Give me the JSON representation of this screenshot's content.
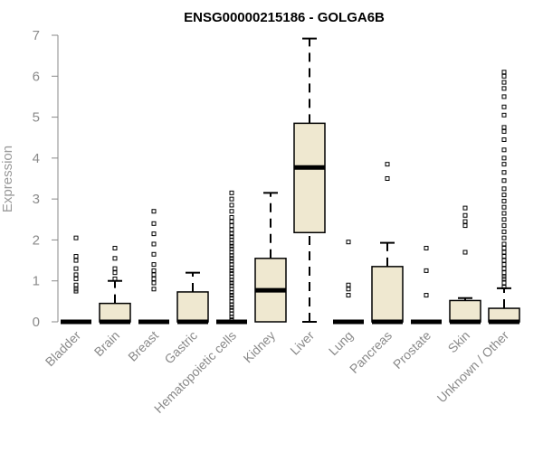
{
  "chart_data": {
    "type": "box",
    "title": "ENSG00000215186 - GOLGA6B",
    "xlabel": "",
    "ylabel": "Expression",
    "ylim": [
      0,
      7
    ],
    "yticks": [
      0,
      1,
      2,
      3,
      4,
      5,
      6,
      7
    ],
    "grid": false,
    "box_color": "#efe8d0",
    "categories": [
      "Bladder",
      "Brain",
      "Breast",
      "Gastric",
      "Hematopoietic cells",
      "Kidney",
      "Liver",
      "Lung",
      "Pancreas",
      "Prostate",
      "Skin",
      "Unknown / Other"
    ],
    "boxes": [
      {
        "label": "Bladder",
        "min": 0,
        "q1": 0,
        "median": 0,
        "q3": 0,
        "max": 0,
        "outliers": [
          0.75,
          0.8,
          0.9,
          1.05,
          1.15,
          1.3,
          1.5,
          1.6,
          2.05
        ]
      },
      {
        "label": "Brain",
        "min": 0,
        "q1": 0,
        "median": 0,
        "q3": 0.45,
        "max": 1.0,
        "outliers": [
          1.05,
          1.2,
          1.3,
          1.55,
          1.8
        ]
      },
      {
        "label": "Breast",
        "min": 0,
        "q1": 0,
        "median": 0,
        "q3": 0,
        "max": 0,
        "outliers": [
          0.8,
          0.95,
          1.05,
          1.15,
          1.25,
          1.4,
          1.65,
          1.9,
          2.15,
          2.4,
          2.7
        ]
      },
      {
        "label": "Gastric",
        "min": 0,
        "q1": 0,
        "median": 0,
        "q3": 0.73,
        "max": 1.2,
        "outliers": []
      },
      {
        "label": "Hematopoietic cells",
        "min": 0,
        "q1": 0,
        "median": 0,
        "q3": 0,
        "max": 0,
        "outliers": [
          0.05,
          0.12,
          0.2,
          0.28,
          0.35,
          0.42,
          0.5,
          0.58,
          0.65,
          0.72,
          0.8,
          0.88,
          0.95,
          1.02,
          1.1,
          1.18,
          1.25,
          1.32,
          1.4,
          1.48,
          1.55,
          1.62,
          1.7,
          1.78,
          1.85,
          1.92,
          2.0,
          2.08,
          2.15,
          2.25,
          2.35,
          2.45,
          2.55,
          2.7,
          2.85,
          3.0,
          3.15
        ]
      },
      {
        "label": "Kidney",
        "min": 0,
        "q1": 0,
        "median": 0.77,
        "q3": 1.55,
        "max": 3.15,
        "outliers": []
      },
      {
        "label": "Liver",
        "min": 0,
        "q1": 2.18,
        "median": 3.77,
        "q3": 4.85,
        "max": 6.92,
        "outliers": []
      },
      {
        "label": "Lung",
        "min": 0,
        "q1": 0,
        "median": 0,
        "q3": 0,
        "max": 0,
        "outliers": [
          0.65,
          0.8,
          0.9,
          1.95
        ]
      },
      {
        "label": "Pancreas",
        "min": 0,
        "q1": 0,
        "median": 0,
        "q3": 1.35,
        "max": 1.93,
        "outliers": [
          3.5,
          3.85
        ]
      },
      {
        "label": "Prostate",
        "min": 0,
        "q1": 0,
        "median": 0,
        "q3": 0,
        "max": 0,
        "outliers": [
          0.65,
          1.25,
          1.8
        ]
      },
      {
        "label": "Skin",
        "min": 0,
        "q1": 0,
        "median": 0,
        "q3": 0.52,
        "max": 0.58,
        "outliers": [
          1.7,
          2.35,
          2.45,
          2.6,
          2.78
        ]
      },
      {
        "label": "Unknown / Other",
        "min": 0,
        "q1": 0,
        "median": 0,
        "q3": 0.33,
        "max": 0.82,
        "outliers": [
          0.85,
          0.95,
          1.05,
          1.1,
          1.2,
          1.3,
          1.4,
          1.5,
          1.6,
          1.7,
          1.8,
          1.9,
          2.05,
          2.2,
          2.35,
          2.5,
          2.65,
          2.8,
          2.95,
          3.1,
          3.25,
          3.45,
          3.65,
          3.85,
          4.0,
          4.2,
          4.45,
          4.65,
          4.75,
          5.05,
          5.25,
          5.5,
          5.7,
          5.85,
          6.0,
          6.1
        ]
      }
    ]
  }
}
